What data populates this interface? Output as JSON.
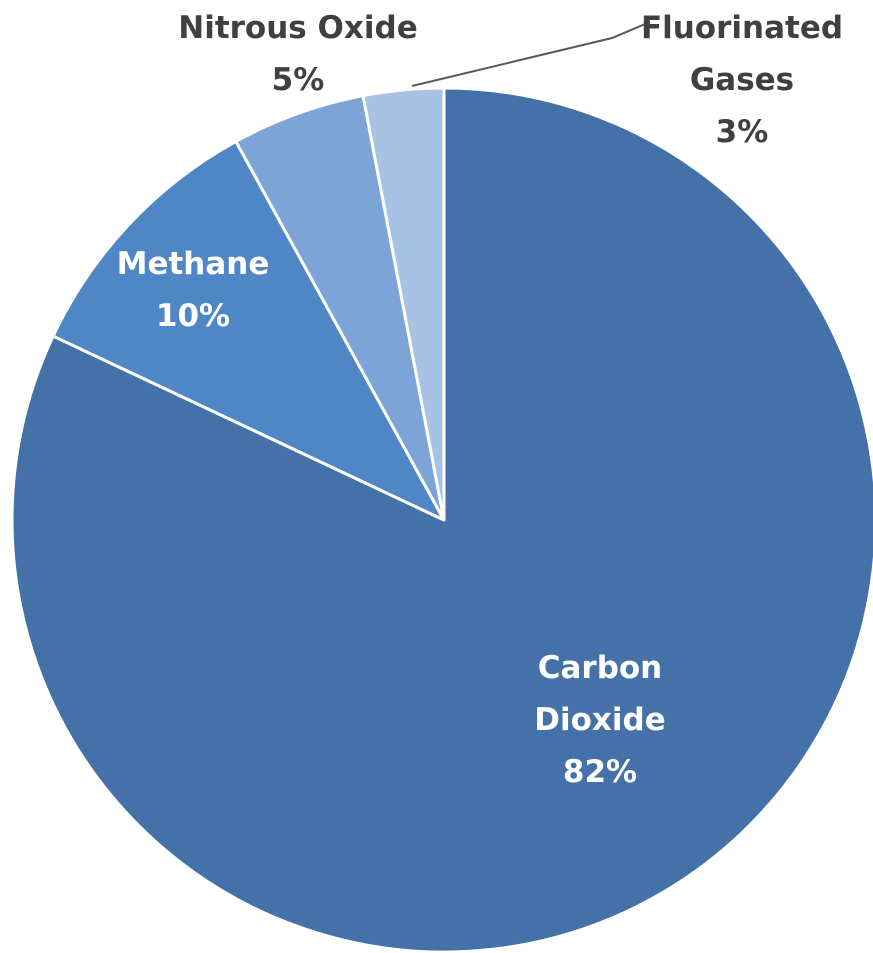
{
  "chart_data": {
    "type": "pie",
    "title": "",
    "start_angle_deg": 0,
    "direction": "clockwise",
    "slices": [
      {
        "label": "Carbon Dioxide",
        "label_lines": [
          "Carbon",
          "Dioxide"
        ],
        "value": 82,
        "value_label": "82%",
        "color": "#4472A8"
      },
      {
        "label": "Methane",
        "label_lines": [
          "Methane"
        ],
        "value": 10,
        "value_label": "10%",
        "color": "#4F86C6"
      },
      {
        "label": "Nitrous Oxide",
        "label_lines": [
          "Nitrous Oxide"
        ],
        "value": 5,
        "value_label": "5%",
        "color": "#7CA4D6"
      },
      {
        "label": "Fluorinated Gases",
        "label_lines": [
          "Fluorinated",
          "Gases"
        ],
        "value": 3,
        "value_label": "3%",
        "color": "#A8C2E4"
      }
    ]
  }
}
